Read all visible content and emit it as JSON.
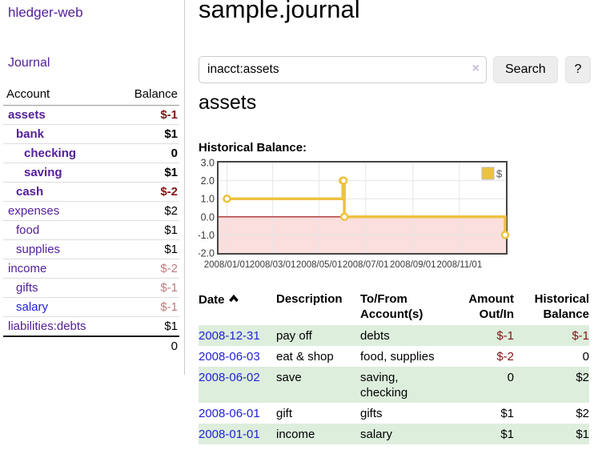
{
  "colors": {
    "link_purple": "#54209b",
    "link_blue": "#2222d8",
    "negative": "#841414",
    "negative_dim": "#bf7b7b",
    "row_stripe_green": "#ddeedd",
    "chart_gold": "#EDC240",
    "chart_negative_fill": "#fbdede",
    "chart_zero_line": "#990000",
    "sidebar_divider": "#cccccc"
  },
  "brand": "hledger-web",
  "sidebar": {
    "journal_link": "Journal",
    "accounts": {
      "col_account": "Account",
      "col_balance": "Balance",
      "rows": [
        {
          "name": "assets",
          "depth": 0,
          "balance": "$-1",
          "negative": true,
          "matched": true,
          "link_color": "purple"
        },
        {
          "name": "bank",
          "depth": 1,
          "balance": "$1",
          "negative": false,
          "matched": true,
          "link_color": "purple"
        },
        {
          "name": "checking",
          "depth": 2,
          "balance": "0",
          "negative": false,
          "matched": true,
          "link_color": "purple"
        },
        {
          "name": "saving",
          "depth": 2,
          "balance": "$1",
          "negative": false,
          "matched": true,
          "link_color": "purple"
        },
        {
          "name": "cash",
          "depth": 1,
          "balance": "$-2",
          "negative": true,
          "matched": true,
          "link_color": "purple"
        },
        {
          "name": "expenses",
          "depth": 0,
          "balance": "$2",
          "negative": false,
          "matched": false,
          "link_color": "purple"
        },
        {
          "name": "food",
          "depth": 1,
          "balance": "$1",
          "negative": false,
          "matched": false,
          "link_color": "purple"
        },
        {
          "name": "supplies",
          "depth": 1,
          "balance": "$1",
          "negative": false,
          "matched": false,
          "link_color": "purple"
        },
        {
          "name": "income",
          "depth": 0,
          "balance": "$-2",
          "negative": true,
          "matched": false,
          "link_color": "purple"
        },
        {
          "name": "gifts",
          "depth": 1,
          "balance": "$-1",
          "negative": true,
          "matched": false,
          "link_color": "purple"
        },
        {
          "name": "salary",
          "depth": 1,
          "balance": "$-1",
          "negative": true,
          "matched": false,
          "link_color": "blue"
        },
        {
          "name": "liabilities:debts",
          "depth": 0,
          "balance": "$1",
          "negative": false,
          "matched": false,
          "link_color": "purple"
        }
      ],
      "total": "0"
    }
  },
  "main": {
    "title": "sample.journal",
    "search": {
      "value": "inacct:assets",
      "clear_icon": "×",
      "submit_label": "Search",
      "help_label": "?"
    },
    "account_heading": "assets",
    "chart_title": "Historical Balance:"
  },
  "chart_data": {
    "type": "line",
    "step": true,
    "title": "Historical Balance",
    "legend_position": "top-right",
    "grid": true,
    "series": [
      {
        "name": "$",
        "color": "#EDC240",
        "points": [
          [
            "2008-01-01",
            1
          ],
          [
            "2008-06-01",
            2
          ],
          [
            "2008-06-02",
            2
          ],
          [
            "2008-06-03",
            0
          ],
          [
            "2008-12-31",
            -1
          ]
        ]
      }
    ],
    "xlim": [
      "2007-12-22",
      "2008-12-31"
    ],
    "ylim": [
      -2,
      3
    ],
    "x_ticks": [
      {
        "date": "2008-01-01",
        "label": "2008/01/01"
      },
      {
        "date": "2008-03-01",
        "label": "2008/03/01"
      },
      {
        "date": "2008-05-01",
        "label": "2008/05/01"
      },
      {
        "date": "2008-07-01",
        "label": "2008/07/01"
      },
      {
        "date": "2008-09-01",
        "label": "2008/09/01"
      },
      {
        "date": "2008-11-01",
        "label": "2008/11/01"
      }
    ],
    "y_ticks": [
      {
        "value": 3,
        "label": "3.0"
      },
      {
        "value": 2,
        "label": "2.0"
      },
      {
        "value": 1,
        "label": "1.0"
      },
      {
        "value": 0,
        "label": "0.0"
      },
      {
        "value": -1,
        "label": "-1.0"
      },
      {
        "value": -2,
        "label": "-2.0"
      }
    ],
    "negative_region_fill": "#fbdede",
    "zero_line_color": "#990000"
  },
  "register": {
    "columns": [
      {
        "lines": [
          "Date"
        ],
        "align": "left",
        "sorted": "asc"
      },
      {
        "lines": [
          "Description"
        ],
        "align": "left"
      },
      {
        "lines": [
          "To/From",
          "Account(s)"
        ],
        "align": "left"
      },
      {
        "lines": [
          "Amount",
          "Out/In"
        ],
        "align": "right"
      },
      {
        "lines": [
          "Historical",
          "Balance"
        ],
        "align": "right"
      }
    ],
    "rows": [
      {
        "date": "2008-12-31",
        "description": "pay off",
        "accounts": "debts",
        "amount": "$-1",
        "amount_negative": true,
        "balance": "$-1",
        "balance_negative": true
      },
      {
        "date": "2008-06-03",
        "description": "eat & shop",
        "accounts": "food, supplies",
        "amount": "$-2",
        "amount_negative": true,
        "balance": "0",
        "balance_negative": false
      },
      {
        "date": "2008-06-02",
        "description": "save",
        "accounts": "saving, checking",
        "amount": "0",
        "amount_negative": false,
        "balance": "$2",
        "balance_negative": false
      },
      {
        "date": "2008-06-01",
        "description": "gift",
        "accounts": "gifts",
        "amount": "$1",
        "amount_negative": false,
        "balance": "$2",
        "balance_negative": false
      },
      {
        "date": "2008-01-01",
        "description": "income",
        "accounts": "salary",
        "amount": "$1",
        "amount_negative": false,
        "balance": "$1",
        "balance_negative": false
      }
    ]
  }
}
